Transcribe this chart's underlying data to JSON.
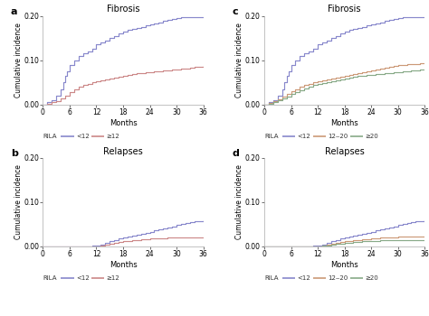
{
  "panel_a": {
    "title": "Fibrosis",
    "label": "a",
    "series": [
      {
        "name": "<12",
        "color": "#8888cc",
        "x": [
          0,
          0.5,
          1,
          1.5,
          2,
          2.5,
          3,
          3.5,
          4,
          4.5,
          5,
          5.5,
          6,
          7,
          8,
          9,
          10,
          11,
          12,
          13,
          14,
          15,
          16,
          17,
          18,
          19,
          20,
          21,
          22,
          23,
          24,
          25,
          26,
          27,
          28,
          29,
          30,
          31,
          32,
          36
        ],
        "y": [
          0,
          0,
          0.005,
          0.005,
          0.01,
          0.01,
          0.02,
          0.02,
          0.035,
          0.05,
          0.065,
          0.075,
          0.09,
          0.1,
          0.11,
          0.115,
          0.12,
          0.125,
          0.135,
          0.14,
          0.145,
          0.15,
          0.155,
          0.16,
          0.165,
          0.168,
          0.17,
          0.172,
          0.175,
          0.178,
          0.18,
          0.182,
          0.185,
          0.188,
          0.19,
          0.192,
          0.194,
          0.196,
          0.197,
          0.197
        ]
      },
      {
        "name": "≥12",
        "color": "#cc8888",
        "x": [
          0,
          1,
          2,
          3,
          4,
          5,
          6,
          7,
          8,
          9,
          10,
          11,
          12,
          13,
          14,
          15,
          16,
          17,
          18,
          19,
          20,
          21,
          22,
          23,
          24,
          25,
          26,
          27,
          28,
          29,
          30,
          31,
          32,
          33,
          34,
          35,
          36
        ],
        "y": [
          0,
          0.002,
          0.005,
          0.008,
          0.013,
          0.02,
          0.028,
          0.034,
          0.04,
          0.044,
          0.047,
          0.05,
          0.053,
          0.055,
          0.057,
          0.059,
          0.061,
          0.063,
          0.065,
          0.067,
          0.068,
          0.07,
          0.071,
          0.072,
          0.073,
          0.074,
          0.075,
          0.076,
          0.077,
          0.078,
          0.079,
          0.08,
          0.081,
          0.082,
          0.084,
          0.086,
          0.087
        ]
      }
    ],
    "legend_label": "RILA",
    "ylim": [
      0,
      0.2
    ],
    "yticks": [
      0.0,
      0.1,
      0.2
    ],
    "xlim": [
      0,
      36
    ],
    "xticks": [
      0,
      6,
      12,
      18,
      24,
      30,
      36
    ]
  },
  "panel_b": {
    "title": "Relapses",
    "label": "b",
    "series": [
      {
        "name": "<12",
        "color": "#8888cc",
        "x": [
          0,
          1,
          2,
          3,
          4,
          5,
          6,
          7,
          8,
          9,
          10,
          11,
          12,
          13,
          14,
          15,
          16,
          17,
          18,
          19,
          20,
          21,
          22,
          23,
          24,
          25,
          26,
          27,
          28,
          29,
          30,
          31,
          32,
          33,
          34,
          35,
          36
        ],
        "y": [
          0,
          0,
          0,
          0,
          0,
          0,
          0,
          0,
          0,
          0,
          0,
          0.002,
          0.003,
          0.005,
          0.008,
          0.012,
          0.015,
          0.018,
          0.02,
          0.022,
          0.024,
          0.026,
          0.028,
          0.03,
          0.033,
          0.036,
          0.038,
          0.04,
          0.042,
          0.045,
          0.048,
          0.05,
          0.052,
          0.054,
          0.056,
          0.058,
          0.06
        ]
      },
      {
        "name": "≥12",
        "color": "#cc8888",
        "x": [
          0,
          1,
          2,
          3,
          4,
          5,
          6,
          7,
          8,
          9,
          10,
          11,
          12,
          13,
          14,
          15,
          16,
          17,
          18,
          19,
          20,
          21,
          22,
          23,
          24,
          25,
          26,
          27,
          28,
          29,
          30,
          31,
          32,
          33,
          34,
          35,
          36
        ],
        "y": [
          0,
          0,
          0,
          0,
          0,
          0,
          0,
          0,
          0,
          0,
          0,
          0,
          0.001,
          0.002,
          0.004,
          0.006,
          0.008,
          0.01,
          0.012,
          0.013,
          0.014,
          0.015,
          0.016,
          0.017,
          0.018,
          0.018,
          0.019,
          0.019,
          0.02,
          0.02,
          0.02,
          0.02,
          0.02,
          0.02,
          0.02,
          0.02,
          0.02
        ]
      }
    ],
    "legend_label": "RILA",
    "ylim": [
      0,
      0.2
    ],
    "yticks": [
      0.0,
      0.1,
      0.2
    ],
    "xlim": [
      0,
      36
    ],
    "xticks": [
      0,
      6,
      12,
      18,
      24,
      30,
      36
    ]
  },
  "panel_c": {
    "title": "Fibrosis",
    "label": "c",
    "series": [
      {
        "name": "<12",
        "color": "#8888cc",
        "x": [
          0,
          0.5,
          1,
          1.5,
          2,
          2.5,
          3,
          3.5,
          4,
          4.5,
          5,
          5.5,
          6,
          7,
          8,
          9,
          10,
          11,
          12,
          13,
          14,
          15,
          16,
          17,
          18,
          19,
          20,
          21,
          22,
          23,
          24,
          25,
          26,
          27,
          28,
          29,
          30,
          31,
          32,
          36
        ],
        "y": [
          0,
          0,
          0.005,
          0.005,
          0.01,
          0.01,
          0.02,
          0.02,
          0.035,
          0.05,
          0.065,
          0.075,
          0.09,
          0.1,
          0.11,
          0.115,
          0.12,
          0.125,
          0.135,
          0.14,
          0.145,
          0.15,
          0.155,
          0.16,
          0.165,
          0.168,
          0.17,
          0.172,
          0.175,
          0.178,
          0.18,
          0.182,
          0.185,
          0.188,
          0.19,
          0.192,
          0.194,
          0.196,
          0.197,
          0.197
        ]
      },
      {
        "name": "12‒20",
        "color": "#cc9977",
        "x": [
          0,
          1,
          2,
          3,
          4,
          5,
          6,
          7,
          8,
          9,
          10,
          11,
          12,
          13,
          14,
          15,
          16,
          17,
          18,
          19,
          20,
          21,
          22,
          23,
          24,
          25,
          26,
          27,
          28,
          29,
          30,
          31,
          32,
          33,
          34,
          35,
          36
        ],
        "y": [
          0,
          0.003,
          0.007,
          0.012,
          0.018,
          0.024,
          0.03,
          0.035,
          0.04,
          0.044,
          0.047,
          0.05,
          0.053,
          0.055,
          0.057,
          0.059,
          0.061,
          0.063,
          0.065,
          0.067,
          0.069,
          0.071,
          0.073,
          0.075,
          0.077,
          0.079,
          0.081,
          0.083,
          0.085,
          0.087,
          0.089,
          0.09,
          0.091,
          0.092,
          0.092,
          0.093,
          0.093
        ]
      },
      {
        "name": "≥20",
        "color": "#88aa88",
        "x": [
          0,
          1,
          2,
          3,
          4,
          5,
          6,
          7,
          8,
          9,
          10,
          11,
          12,
          13,
          14,
          15,
          16,
          17,
          18,
          19,
          20,
          21,
          22,
          23,
          24,
          25,
          26,
          27,
          28,
          29,
          30,
          31,
          32,
          33,
          34,
          35,
          36
        ],
        "y": [
          0,
          0.002,
          0.005,
          0.009,
          0.013,
          0.018,
          0.024,
          0.028,
          0.033,
          0.037,
          0.041,
          0.044,
          0.047,
          0.049,
          0.051,
          0.053,
          0.055,
          0.057,
          0.059,
          0.061,
          0.063,
          0.064,
          0.065,
          0.066,
          0.067,
          0.068,
          0.069,
          0.07,
          0.071,
          0.072,
          0.073,
          0.074,
          0.075,
          0.076,
          0.077,
          0.078,
          0.079
        ]
      }
    ],
    "legend_label": "RILA",
    "ylim": [
      0,
      0.2
    ],
    "yticks": [
      0.0,
      0.1,
      0.2
    ],
    "xlim": [
      0,
      36
    ],
    "xticks": [
      0,
      6,
      12,
      18,
      24,
      30,
      36
    ]
  },
  "panel_d": {
    "title": "Relapses",
    "label": "d",
    "series": [
      {
        "name": "<12",
        "color": "#8888cc",
        "x": [
          0,
          1,
          2,
          3,
          4,
          5,
          6,
          7,
          8,
          9,
          10,
          11,
          12,
          13,
          14,
          15,
          16,
          17,
          18,
          19,
          20,
          21,
          22,
          23,
          24,
          25,
          26,
          27,
          28,
          29,
          30,
          31,
          32,
          33,
          34,
          35,
          36
        ],
        "y": [
          0,
          0,
          0,
          0,
          0,
          0,
          0,
          0,
          0,
          0,
          0,
          0.002,
          0.003,
          0.005,
          0.008,
          0.012,
          0.015,
          0.018,
          0.02,
          0.022,
          0.024,
          0.026,
          0.028,
          0.03,
          0.033,
          0.036,
          0.038,
          0.04,
          0.042,
          0.045,
          0.048,
          0.05,
          0.052,
          0.054,
          0.056,
          0.058,
          0.06
        ]
      },
      {
        "name": "12‒20",
        "color": "#cc9977",
        "x": [
          0,
          1,
          2,
          3,
          4,
          5,
          6,
          7,
          8,
          9,
          10,
          11,
          12,
          13,
          14,
          15,
          16,
          17,
          18,
          19,
          20,
          21,
          22,
          23,
          24,
          25,
          26,
          27,
          28,
          29,
          30,
          31,
          32,
          33,
          34,
          35,
          36
        ],
        "y": [
          0,
          0,
          0,
          0,
          0,
          0,
          0,
          0,
          0,
          0,
          0,
          0,
          0.001,
          0.002,
          0.004,
          0.006,
          0.008,
          0.01,
          0.012,
          0.013,
          0.014,
          0.015,
          0.016,
          0.017,
          0.018,
          0.019,
          0.02,
          0.02,
          0.021,
          0.021,
          0.022,
          0.022,
          0.022,
          0.022,
          0.022,
          0.022,
          0.022
        ]
      },
      {
        "name": "≥20",
        "color": "#88aa88",
        "x": [
          0,
          1,
          2,
          3,
          4,
          5,
          6,
          7,
          8,
          9,
          10,
          11,
          12,
          13,
          14,
          15,
          16,
          17,
          18,
          19,
          20,
          21,
          22,
          23,
          24,
          25,
          26,
          27,
          28,
          29,
          30,
          31,
          32,
          33,
          34,
          35,
          36
        ],
        "y": [
          0,
          0,
          0,
          0,
          0,
          0,
          0,
          0,
          0,
          0,
          0,
          0,
          0.001,
          0.002,
          0.003,
          0.004,
          0.006,
          0.007,
          0.008,
          0.009,
          0.01,
          0.011,
          0.012,
          0.012,
          0.013,
          0.013,
          0.014,
          0.014,
          0.014,
          0.015,
          0.015,
          0.015,
          0.015,
          0.015,
          0.015,
          0.015,
          0.015
        ]
      }
    ],
    "legend_label": "RILA",
    "ylim": [
      0,
      0.2
    ],
    "yticks": [
      0.0,
      0.1,
      0.2
    ],
    "xlim": [
      0,
      36
    ],
    "xticks": [
      0,
      6,
      12,
      18,
      24,
      30,
      36
    ]
  },
  "xlabel": "Months",
  "ylabel": "Cumulative incidence",
  "bg_color": "#ffffff"
}
